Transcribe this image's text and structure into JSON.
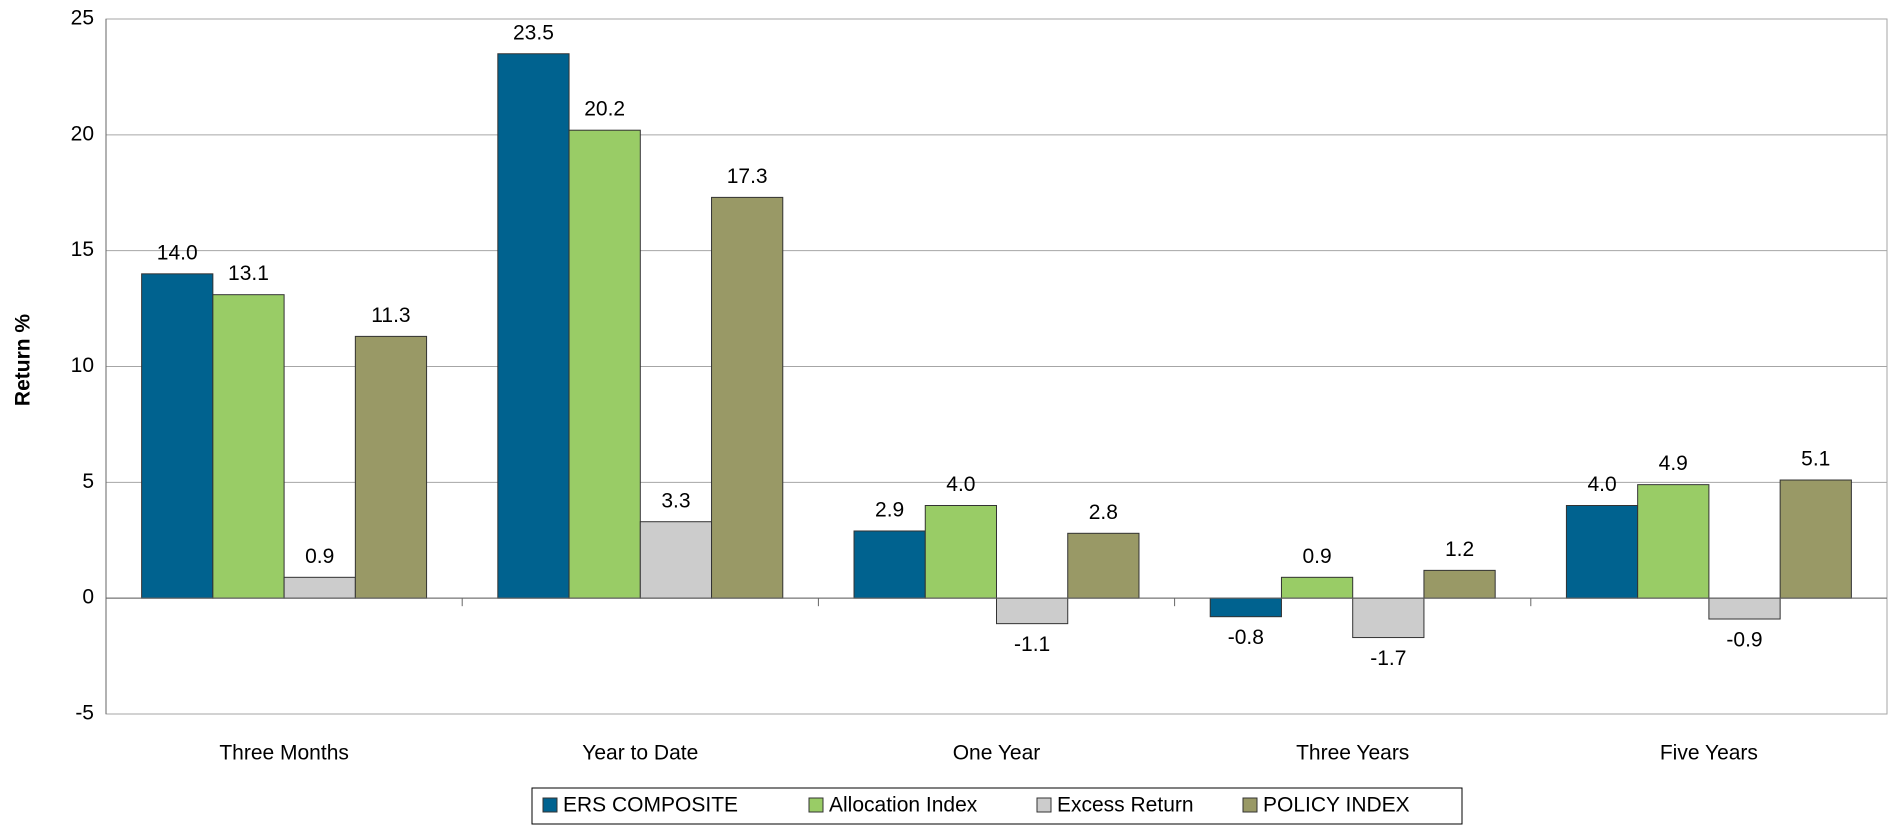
{
  "chart_data": {
    "type": "bar",
    "y_label": "Return %",
    "categories": [
      "Three Months",
      "Year to Date",
      "One Year",
      "Three Years",
      "Five Years"
    ],
    "series": [
      {
        "name": "ERS COMPOSITE",
        "color": "#00628f",
        "values": [
          14.0,
          23.5,
          2.9,
          -0.8,
          4.0
        ],
        "value_labels": [
          "14.0",
          "23.5",
          "2.9",
          "-0.8",
          "4.0"
        ]
      },
      {
        "name": "Allocation Index",
        "color": "#99cc66",
        "values": [
          13.1,
          20.2,
          4.0,
          0.9,
          4.9
        ],
        "value_labels": [
          "13.1",
          "20.2",
          "4.0",
          "0.9",
          "4.9"
        ]
      },
      {
        "name": "Excess Return",
        "color": "#cccccc",
        "values": [
          0.9,
          3.3,
          -1.1,
          -1.7,
          -0.9
        ],
        "value_labels": [
          "0.9",
          "3.3",
          "-1.1",
          "-1.7",
          "-0.9"
        ]
      },
      {
        "name": "POLICY INDEX",
        "color": "#999966",
        "values": [
          11.3,
          17.3,
          2.8,
          1.2,
          5.1
        ],
        "value_labels": [
          "11.3",
          "17.3",
          "2.8",
          "1.2",
          "5.1"
        ]
      }
    ],
    "ylim": [
      -5,
      25
    ],
    "yticks": [
      -5,
      0,
      5,
      10,
      15,
      20,
      25
    ],
    "grid": true,
    "legend": "bottom"
  }
}
